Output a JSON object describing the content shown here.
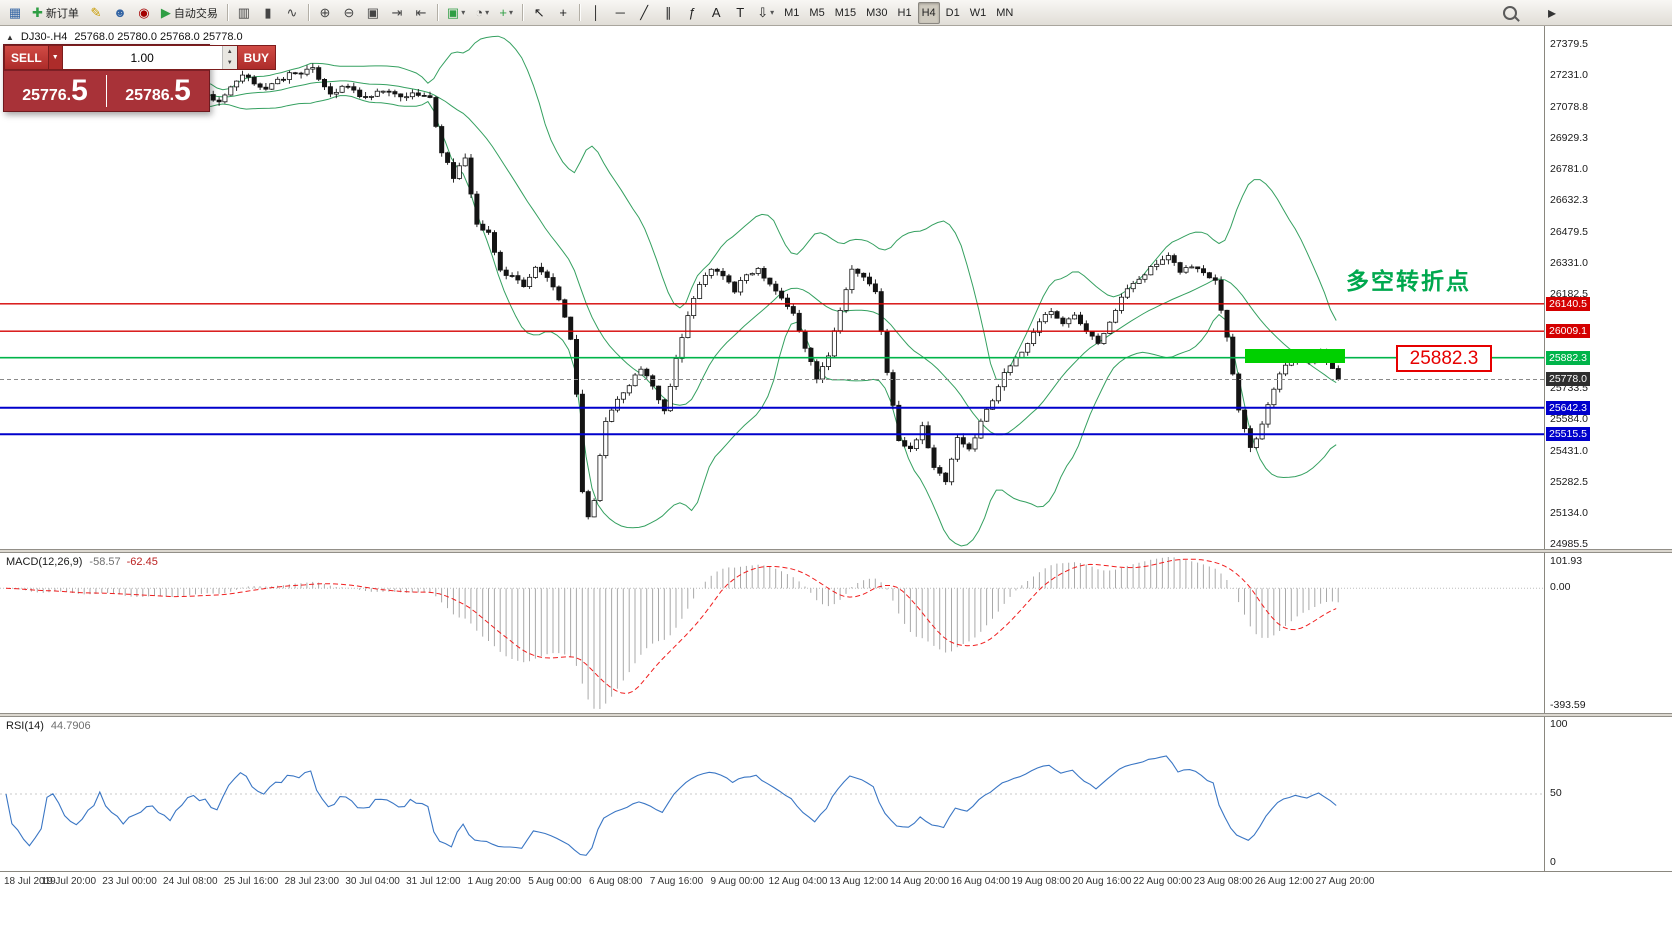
{
  "toolbar": {
    "buttons": [
      {
        "name": "chart-window-icon",
        "glyph": "▦",
        "color": "#3465a4"
      },
      {
        "name": "new-order-button",
        "glyph": "✚",
        "color": "#2f9e44",
        "label": "新订单"
      },
      {
        "name": "metaeditor-icon",
        "glyph": "✎",
        "color": "#c89b00"
      },
      {
        "name": "profile-icon",
        "glyph": "☻",
        "color": "#3465a4"
      },
      {
        "name": "market-icon",
        "glyph": "◉",
        "color": "#a40000"
      },
      {
        "name": "autotrading-button",
        "glyph": "▶",
        "color": "#2f9e44",
        "label": "自动交易"
      },
      {
        "sep": true
      },
      {
        "name": "bar-chart-icon",
        "glyph": "▥",
        "color": "#444"
      },
      {
        "name": "candlestick-chart-icon",
        "glyph": "▮",
        "color": "#444"
      },
      {
        "name": "line-chart-icon",
        "glyph": "∿",
        "color": "#444"
      },
      {
        "sep": true
      },
      {
        "name": "zoom-in-icon",
        "glyph": "⊕",
        "color": "#444"
      },
      {
        "name": "zoom-out-icon",
        "glyph": "⊖",
        "color": "#444"
      },
      {
        "name": "tile-windows-icon",
        "glyph": "▣",
        "color": "#444"
      },
      {
        "name": "auto-scroll-icon",
        "glyph": "⇥",
        "color": "#444"
      },
      {
        "name": "chart-shift-icon",
        "glyph": "⇤",
        "color": "#444"
      },
      {
        "sep": true
      },
      {
        "name": "new-window-menu",
        "glyph": "▣",
        "color": "#2f9e44",
        "dropdown": true
      },
      {
        "name": "periods-menu",
        "glyph": "◔",
        "color": "#444",
        "dropdown": true
      },
      {
        "name": "indicators-menu",
        "glyph": "+",
        "color": "#2f9e44",
        "dropdown": true
      },
      {
        "sep": true
      },
      {
        "name": "cursor-icon",
        "glyph": "↖",
        "color": "#222"
      },
      {
        "name": "crosshair-icon",
        "glyph": "+",
        "color": "#222"
      },
      {
        "sep": true
      },
      {
        "name": "vertical-line-icon",
        "glyph": "│",
        "color": "#222"
      },
      {
        "name": "horizontal-line-icon",
        "glyph": "─",
        "color": "#222"
      },
      {
        "name": "trendline-icon",
        "glyph": "╱",
        "color": "#222"
      },
      {
        "name": "channel-icon",
        "glyph": "∥",
        "color": "#222"
      },
      {
        "name": "fibonacci-icon",
        "glyph": "ƒ",
        "color": "#222"
      },
      {
        "name": "text-icon",
        "glyph": "A",
        "color": "#222"
      },
      {
        "name": "label-icon",
        "glyph": "T",
        "color": "#222"
      },
      {
        "name": "arrows-menu",
        "glyph": "⇩",
        "color": "#222",
        "dropdown": true
      }
    ],
    "timeframes": [
      {
        "label": "M1"
      },
      {
        "label": "M5"
      },
      {
        "label": "M15"
      },
      {
        "label": "M30"
      },
      {
        "label": "H1"
      },
      {
        "label": "H4",
        "active": true
      },
      {
        "label": "D1"
      },
      {
        "label": "W1"
      },
      {
        "label": "MN"
      }
    ],
    "right_expand_glyph": "▸"
  },
  "chart": {
    "info": {
      "symbol": "DJ30-.H4",
      "ohlc": "25768.0 25780.0 25768.0 25778.0"
    },
    "trade_panel": {
      "sell_label": "SELL",
      "buy_label": "BUY",
      "volume": "1.00",
      "sell_price_small": "25776.",
      "sell_price_big": "5",
      "buy_price_small": "25786.",
      "buy_price_big": "5"
    },
    "annotation_text": "多空转折点",
    "callout_price": "25882.3",
    "levels": [
      {
        "label": "26140.5",
        "price": 26140.5,
        "color": "#d40000",
        "width": 1.4
      },
      {
        "label": "26009.1",
        "price": 26009.1,
        "color": "#d40000",
        "width": 1.4
      },
      {
        "label": "25882.3",
        "price": 25882.3,
        "color": "#00b44a",
        "width": 1.6
      },
      {
        "label": "25642.3",
        "price": 25642.3,
        "color": "#0000cc",
        "width": 2
      },
      {
        "label": "25515.5",
        "price": 25515.5,
        "color": "#0000cc",
        "width": 2
      }
    ],
    "current_price": {
      "label": "25778.0",
      "price": 25778.0,
      "tag_color": "#2f2f2f"
    },
    "y_ticks": [
      27379.5,
      27231.0,
      27078.8,
      26929.3,
      26781.0,
      26632.3,
      26479.5,
      26331.0,
      26182.5,
      25733.5,
      25584.0,
      25431.0,
      25282.5,
      25134.0,
      24985.5
    ],
    "price_top": 27379.5,
    "price_bottom": 24985.5,
    "highlight": {
      "x_from": 1245,
      "x_to": 1345,
      "price_top": 25924,
      "price_bottom": 25857,
      "color": "#00d000"
    }
  },
  "chart_data": {
    "type": "candlestick",
    "symbol": "DJ30-",
    "timeframe": "H4",
    "title": "DJ30- H4 candlestick chart with Bollinger Bands, horizontal support/resistance levels, MACD and RSI",
    "num_candles": 228,
    "last_close": 25778.0,
    "last_ohlc": {
      "open": 25768.0,
      "high": 25780.0,
      "low": 25768.0,
      "close": 25778.0
    },
    "close_anchors": [
      [
        0,
        27255
      ],
      [
        4,
        27180
      ],
      [
        8,
        27230
      ],
      [
        12,
        27160
      ],
      [
        16,
        27210
      ],
      [
        20,
        27120
      ],
      [
        24,
        27150
      ],
      [
        28,
        27100
      ],
      [
        32,
        27160
      ],
      [
        36,
        27110
      ],
      [
        40,
        27230
      ],
      [
        44,
        27170
      ],
      [
        48,
        27240
      ],
      [
        52,
        27260
      ],
      [
        55,
        27150
      ],
      [
        58,
        27180
      ],
      [
        61,
        27120
      ],
      [
        64,
        27160
      ],
      [
        67,
        27130
      ],
      [
        70,
        27150
      ],
      [
        72,
        27120
      ],
      [
        74,
        26870
      ],
      [
        76,
        26750
      ],
      [
        78,
        26830
      ],
      [
        80,
        26520
      ],
      [
        82,
        26470
      ],
      [
        84,
        26300
      ],
      [
        86,
        26270
      ],
      [
        88,
        26230
      ],
      [
        90,
        26310
      ],
      [
        92,
        26270
      ],
      [
        94,
        26150
      ],
      [
        96,
        25980
      ],
      [
        97,
        25700
      ],
      [
        98,
        25250
      ],
      [
        99,
        25120
      ],
      [
        100,
        25200
      ],
      [
        101,
        25410
      ],
      [
        102,
        25580
      ],
      [
        104,
        25680
      ],
      [
        106,
        25760
      ],
      [
        108,
        25830
      ],
      [
        110,
        25740
      ],
      [
        112,
        25630
      ],
      [
        114,
        25880
      ],
      [
        116,
        26080
      ],
      [
        118,
        26240
      ],
      [
        120,
        26300
      ],
      [
        122,
        26280
      ],
      [
        124,
        26200
      ],
      [
        126,
        26280
      ],
      [
        128,
        26310
      ],
      [
        130,
        26240
      ],
      [
        132,
        26170
      ],
      [
        134,
        26090
      ],
      [
        136,
        25930
      ],
      [
        138,
        25790
      ],
      [
        140,
        25900
      ],
      [
        142,
        26120
      ],
      [
        144,
        26300
      ],
      [
        146,
        26270
      ],
      [
        148,
        26190
      ],
      [
        150,
        25820
      ],
      [
        152,
        25480
      ],
      [
        154,
        25440
      ],
      [
        156,
        25560
      ],
      [
        158,
        25350
      ],
      [
        160,
        25290
      ],
      [
        162,
        25490
      ],
      [
        164,
        25440
      ],
      [
        166,
        25580
      ],
      [
        168,
        25680
      ],
      [
        170,
        25820
      ],
      [
        172,
        25870
      ],
      [
        174,
        25950
      ],
      [
        176,
        26060
      ],
      [
        178,
        26110
      ],
      [
        180,
        26040
      ],
      [
        182,
        26090
      ],
      [
        184,
        26020
      ],
      [
        186,
        25960
      ],
      [
        188,
        26060
      ],
      [
        190,
        26170
      ],
      [
        192,
        26240
      ],
      [
        194,
        26290
      ],
      [
        196,
        26330
      ],
      [
        198,
        26360
      ],
      [
        200,
        26300
      ],
      [
        202,
        26320
      ],
      [
        204,
        26290
      ],
      [
        206,
        26260
      ],
      [
        208,
        25980
      ],
      [
        210,
        25640
      ],
      [
        212,
        25450
      ],
      [
        214,
        25560
      ],
      [
        216,
        25740
      ],
      [
        218,
        25850
      ],
      [
        220,
        25890
      ],
      [
        222,
        25870
      ],
      [
        224,
        25905
      ],
      [
        226,
        25840
      ],
      [
        227,
        25778
      ]
    ],
    "indicators": [
      {
        "name": "Bollinger Bands",
        "period": 20,
        "deviation": 2,
        "color": "#35a060"
      },
      {
        "name": "MACD",
        "params": "12,26,9",
        "value_main": -58.57,
        "value_signal": -62.45,
        "scale_max": 101.93,
        "scale_min": -393.59
      },
      {
        "name": "RSI",
        "period": 14,
        "value": 44.7906,
        "scale_min": 0,
        "scale_max": 100
      }
    ],
    "x_labels": [
      "18 Jul 2019",
      "19 Jul 20:00",
      "23 Jul 00:00",
      "24 Jul 08:00",
      "25 Jul 16:00",
      "28 Jul 23:00",
      "30 Jul 04:00",
      "31 Jul 12:00",
      "1 Aug 20:00",
      "5 Aug 00:00",
      "6 Aug 08:00",
      "7 Aug 16:00",
      "9 Aug 00:00",
      "12 Aug 04:00",
      "13 Aug 12:00",
      "14 Aug 20:00",
      "16 Aug 04:00",
      "19 Aug 08:00",
      "20 Aug 16:00",
      "22 Aug 00:00",
      "23 Aug 08:00",
      "26 Aug 12:00",
      "27 Aug 20:00"
    ]
  },
  "macd_panel": {
    "label": "MACD(12,26,9)",
    "value_main": "-58.57",
    "value_signal": "-62.45",
    "scale_labels": [
      "101.93",
      "0.00",
      "-393.59"
    ]
  },
  "rsi_panel": {
    "label": "RSI(14)",
    "value": "44.7906",
    "scale_labels": [
      "100",
      "50",
      "0"
    ]
  }
}
